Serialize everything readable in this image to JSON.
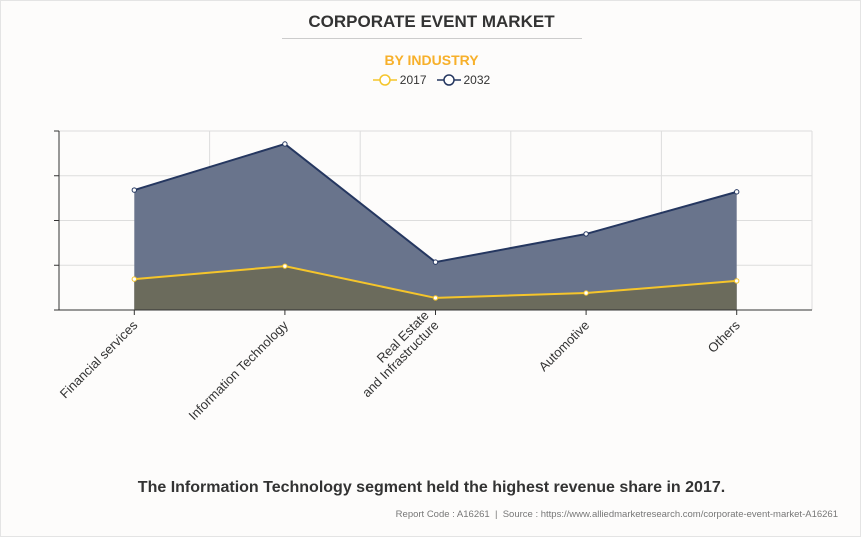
{
  "chart_data": {
    "type": "area",
    "title": "CORPORATE EVENT MARKET",
    "subtitle": "BY INDUSTRY",
    "categories": [
      "Financial services",
      "Information Technology",
      "Real Estate\nand Infrastructure",
      "Automotive",
      "Others"
    ],
    "series": [
      {
        "name": "2017",
        "color": "#f5c52b",
        "fill": "#6b6a5a",
        "values": [
          0.69,
          0.98,
          0.27,
          0.38,
          0.65
        ]
      },
      {
        "name": "2032",
        "color": "#253760",
        "fill": "#66718a",
        "values": [
          2.68,
          3.71,
          1.07,
          1.7,
          2.64
        ]
      }
    ],
    "ylim": [
      0,
      4
    ],
    "y_ticks_labeled": false,
    "grid": true,
    "legend": "top-center"
  },
  "caption": "The Information Technology segment held the highest revenue share in 2017.",
  "source": "Report Code : A16261  |  Source : https://www.alliedmarketresearch.com/corporate-event-market-A16261"
}
